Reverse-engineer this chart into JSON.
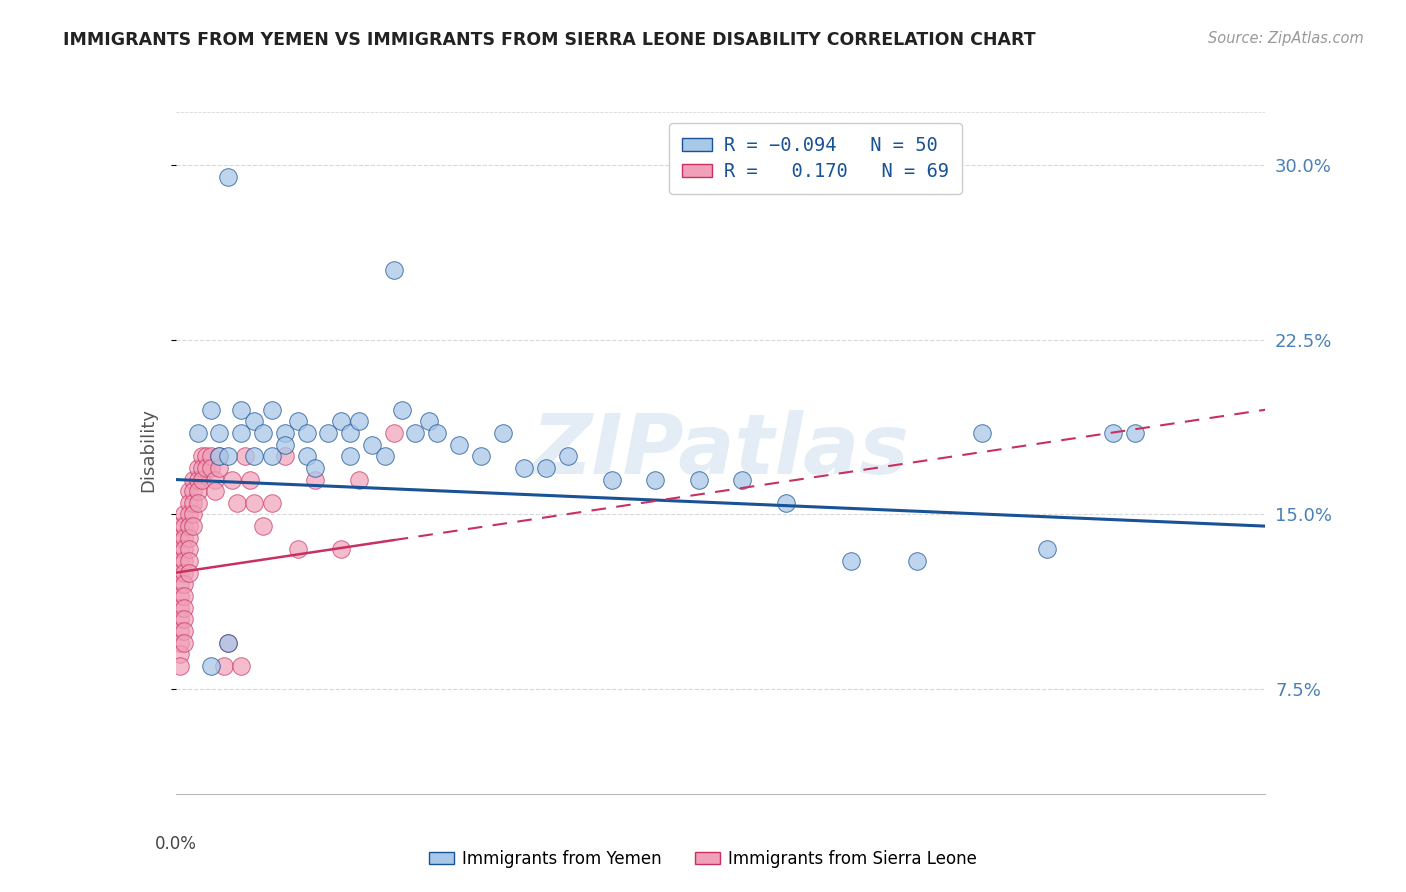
{
  "title": "IMMIGRANTS FROM YEMEN VS IMMIGRANTS FROM SIERRA LEONE DISABILITY CORRELATION CHART",
  "source": "Source: ZipAtlas.com",
  "ylabel": "Disability",
  "ytick_vals": [
    0.075,
    0.15,
    0.225,
    0.3
  ],
  "ytick_labels": [
    "7.5%",
    "15.0%",
    "22.5%",
    "30.0%"
  ],
  "xlim": [
    0.0,
    0.25
  ],
  "ylim": [
    0.03,
    0.325
  ],
  "watermark": "ZIPatlas",
  "color_yemen": "#a8c8e8",
  "color_sl": "#f0a0b8",
  "color_trend_yemen": "#1a5296",
  "color_trend_sl": "#c83060",
  "color_grid": "#d8d8d8",
  "yemen_x": [
    0.012,
    0.005,
    0.008,
    0.01,
    0.01,
    0.012,
    0.015,
    0.015,
    0.018,
    0.018,
    0.02,
    0.022,
    0.022,
    0.025,
    0.025,
    0.028,
    0.03,
    0.03,
    0.032,
    0.035,
    0.038,
    0.04,
    0.04,
    0.042,
    0.045,
    0.048,
    0.05,
    0.052,
    0.055,
    0.058,
    0.06,
    0.065,
    0.07,
    0.075,
    0.08,
    0.085,
    0.09,
    0.1,
    0.11,
    0.12,
    0.13,
    0.14,
    0.155,
    0.17,
    0.185,
    0.2,
    0.215,
    0.22,
    0.008,
    0.012
  ],
  "yemen_y": [
    0.295,
    0.185,
    0.195,
    0.175,
    0.185,
    0.175,
    0.195,
    0.185,
    0.175,
    0.19,
    0.185,
    0.195,
    0.175,
    0.185,
    0.18,
    0.19,
    0.185,
    0.175,
    0.17,
    0.185,
    0.19,
    0.185,
    0.175,
    0.19,
    0.18,
    0.175,
    0.255,
    0.195,
    0.185,
    0.19,
    0.185,
    0.18,
    0.175,
    0.185,
    0.17,
    0.17,
    0.175,
    0.165,
    0.165,
    0.165,
    0.165,
    0.155,
    0.13,
    0.13,
    0.185,
    0.135,
    0.185,
    0.185,
    0.085,
    0.095
  ],
  "sl_x": [
    0.001,
    0.001,
    0.001,
    0.001,
    0.001,
    0.001,
    0.001,
    0.001,
    0.001,
    0.001,
    0.001,
    0.001,
    0.001,
    0.002,
    0.002,
    0.002,
    0.002,
    0.002,
    0.002,
    0.002,
    0.002,
    0.002,
    0.002,
    0.002,
    0.002,
    0.003,
    0.003,
    0.003,
    0.003,
    0.003,
    0.003,
    0.003,
    0.003,
    0.004,
    0.004,
    0.004,
    0.004,
    0.004,
    0.005,
    0.005,
    0.005,
    0.005,
    0.006,
    0.006,
    0.006,
    0.007,
    0.007,
    0.008,
    0.008,
    0.009,
    0.009,
    0.01,
    0.01,
    0.011,
    0.012,
    0.013,
    0.014,
    0.015,
    0.016,
    0.017,
    0.018,
    0.02,
    0.022,
    0.025,
    0.028,
    0.032,
    0.038,
    0.042,
    0.05
  ],
  "sl_y": [
    0.145,
    0.14,
    0.135,
    0.13,
    0.125,
    0.12,
    0.115,
    0.11,
    0.105,
    0.1,
    0.095,
    0.09,
    0.085,
    0.15,
    0.145,
    0.14,
    0.135,
    0.13,
    0.125,
    0.12,
    0.115,
    0.11,
    0.105,
    0.1,
    0.095,
    0.16,
    0.155,
    0.15,
    0.145,
    0.14,
    0.135,
    0.13,
    0.125,
    0.165,
    0.16,
    0.155,
    0.15,
    0.145,
    0.17,
    0.165,
    0.16,
    0.155,
    0.175,
    0.17,
    0.165,
    0.175,
    0.17,
    0.175,
    0.17,
    0.165,
    0.16,
    0.175,
    0.17,
    0.085,
    0.095,
    0.165,
    0.155,
    0.085,
    0.175,
    0.165,
    0.155,
    0.145,
    0.155,
    0.175,
    0.135,
    0.165,
    0.135,
    0.165,
    0.185
  ]
}
